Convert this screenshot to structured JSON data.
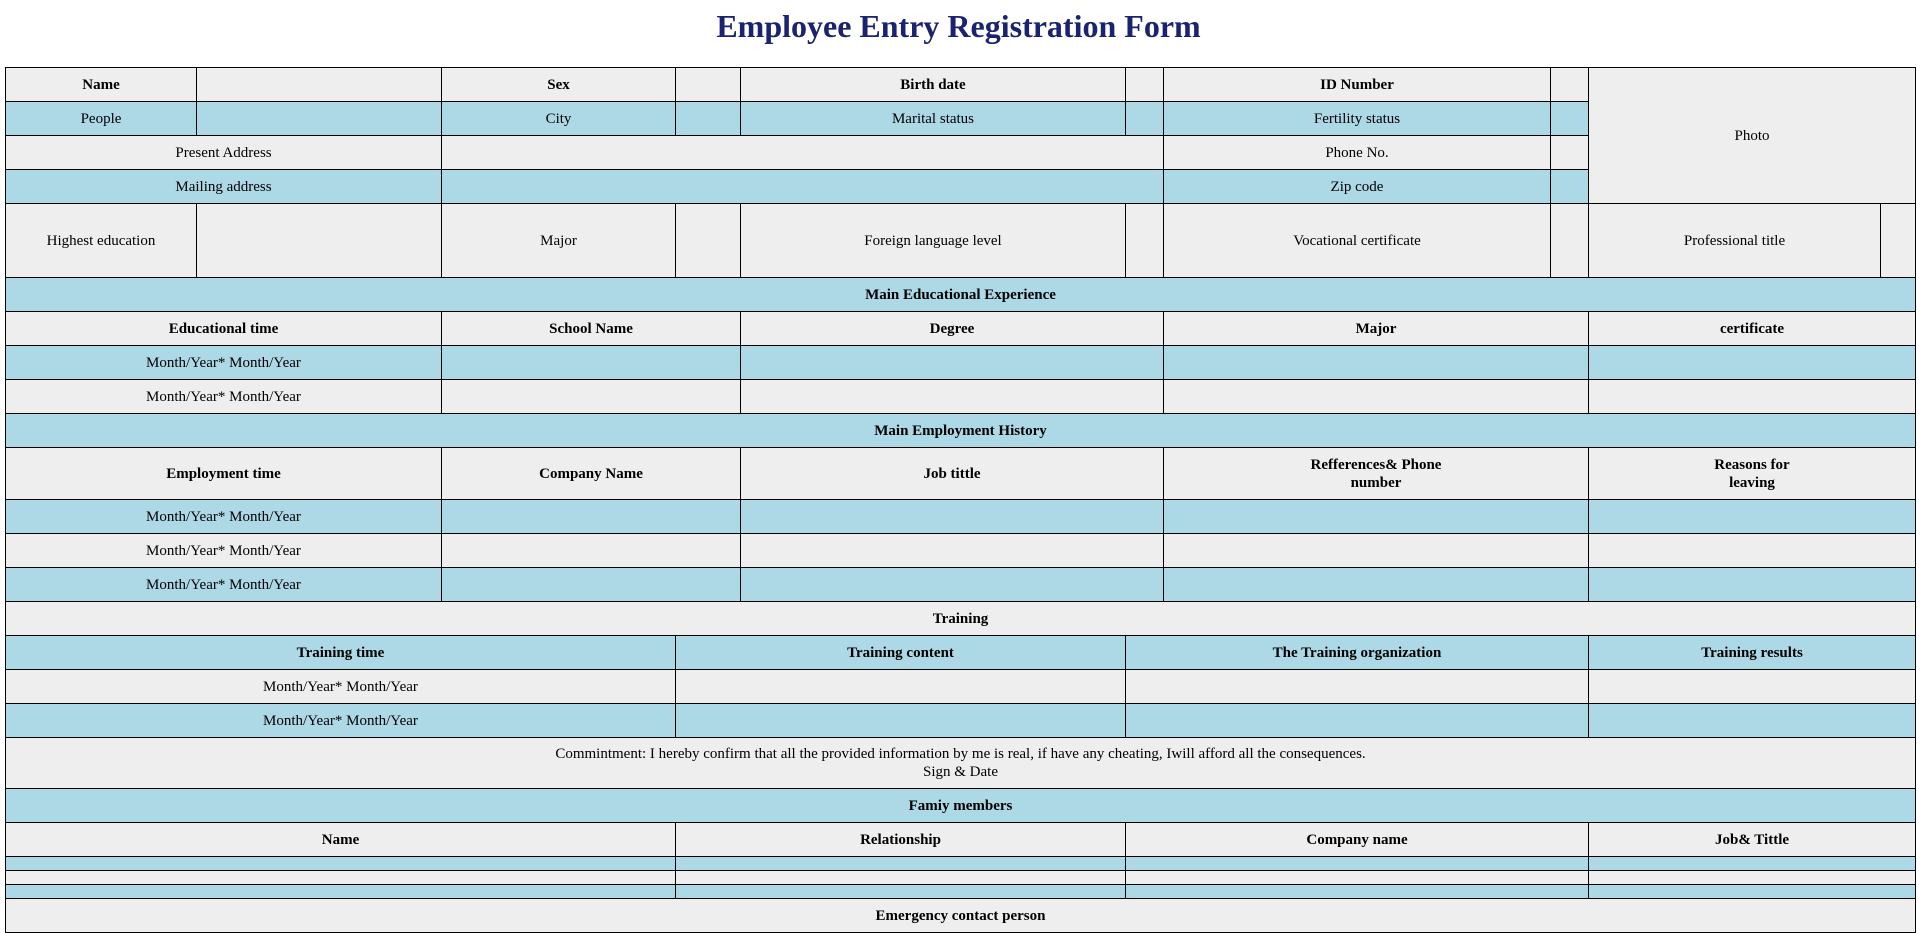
{
  "title": "Employee Entry Registration Form",
  "personal": {
    "name": "Name",
    "sex": "Sex",
    "birth_date": "Birth date",
    "id_number": "ID Number",
    "photo": "Photo",
    "people": "People",
    "city": "City",
    "marital_status": "Marital status",
    "fertility_status": "Fertility status",
    "present_address": "Present Address",
    "phone_no": "Phone No.",
    "mailing_address": "Mailing address",
    "zip_code": "Zip code",
    "highest_education": "Highest education",
    "major": "Major",
    "foreign_language_level": "Foreign language level",
    "vocational_certificate": "Vocational certificate",
    "professional_title": "Professional title"
  },
  "education": {
    "section_title": "Main Educational Experience",
    "headers": [
      "Educational time",
      "School Name",
      "Degree",
      "Major",
      "certificate"
    ],
    "rows": [
      "Month/Year* Month/Year",
      "Month/Year* Month/Year"
    ]
  },
  "employment": {
    "section_title": "Main Employment History",
    "headers": [
      "Employment time",
      "Company Name",
      "Job tittle",
      "Refferences& Phone number",
      "Reasons for leaving"
    ],
    "rows": [
      "Month/Year* Month/Year",
      "Month/Year* Month/Year",
      "Month/Year* Month/Year"
    ]
  },
  "training": {
    "section_title": "Training",
    "headers": [
      "Training time",
      "Training content",
      "The Training organization",
      "Training results"
    ],
    "rows": [
      "Month/Year* Month/Year",
      "Month/Year* Month/Year"
    ]
  },
  "commitment": {
    "text": "Commintment: I hereby confirm that all the provided information by me is real, if have any cheating, Iwill afford all the consequences.",
    "sign": "Sign & Date"
  },
  "family": {
    "section_title": "Famiy members",
    "headers": [
      "Name",
      "Relationship",
      "Company name",
      "Job& Tittle"
    ]
  },
  "emergency": {
    "section_title": "Emergency contact person"
  }
}
